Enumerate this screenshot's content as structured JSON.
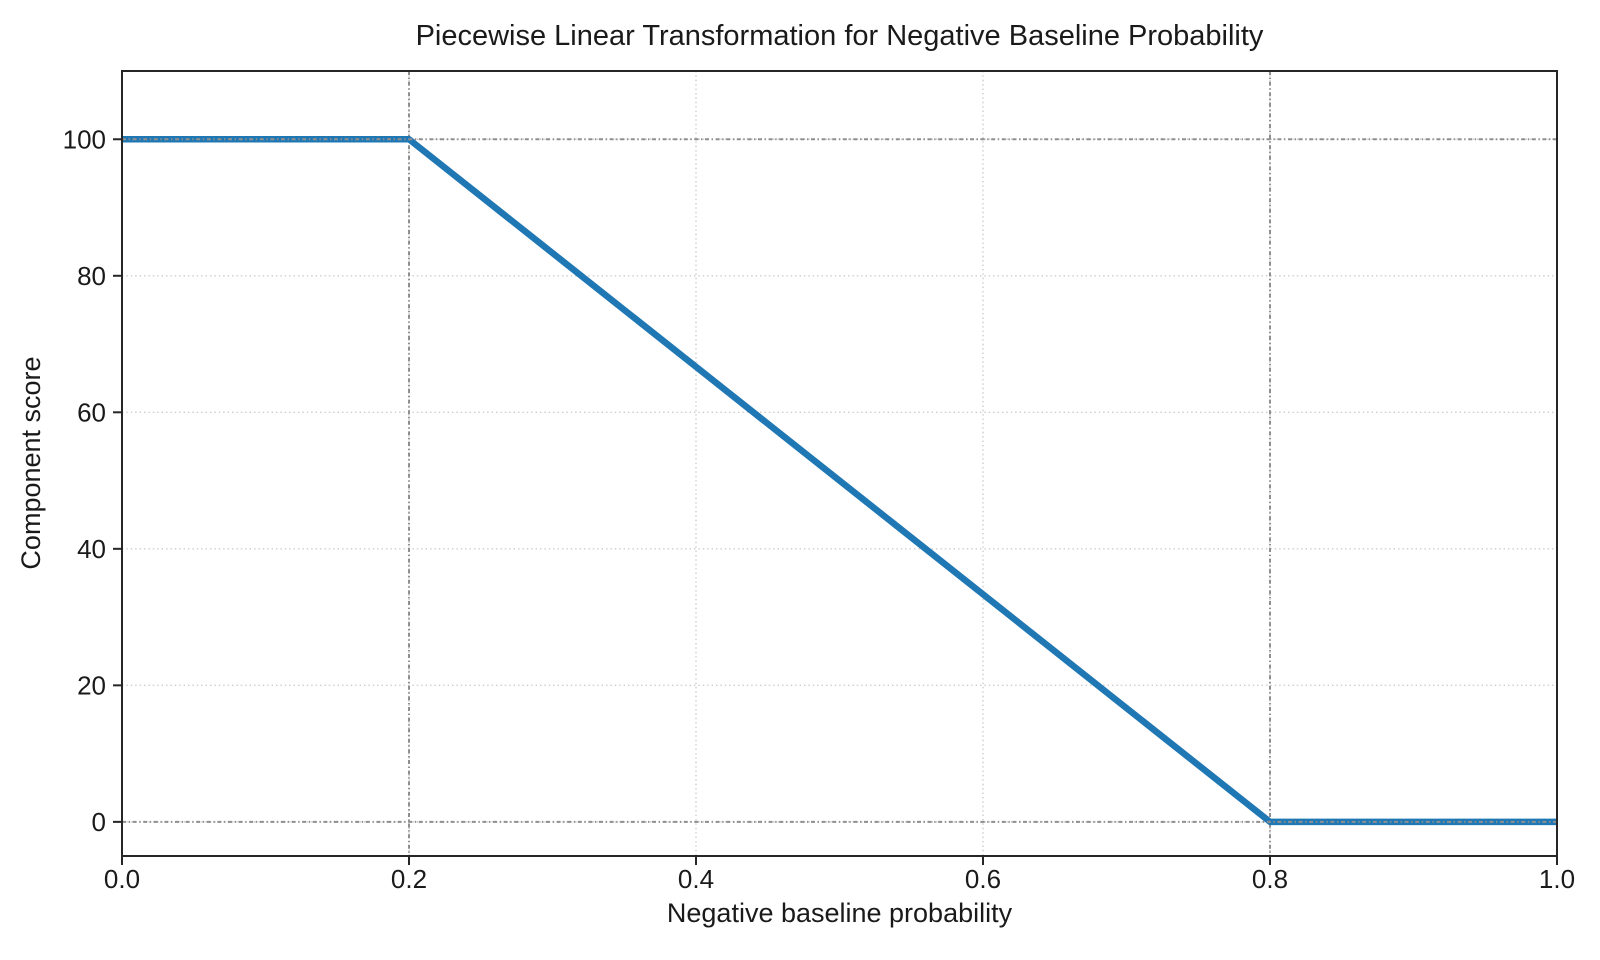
{
  "chart_data": {
    "type": "line",
    "title": "Piecewise Linear Transformation for Negative Baseline Probability",
    "xlabel": "Negative baseline probability",
    "ylabel": "Component score",
    "xlim": [
      0,
      1
    ],
    "ylim": [
      -5,
      110
    ],
    "xticks": {
      "values": [
        0,
        0.2,
        0.4,
        0.6,
        0.8,
        1.0
      ],
      "labels": [
        "0.0",
        "0.2",
        "0.4",
        "0.6",
        "0.8",
        "1.0"
      ]
    },
    "yticks": {
      "values": [
        0,
        20,
        40,
        60,
        80,
        100
      ],
      "labels": [
        "0",
        "20",
        "40",
        "60",
        "80",
        "100"
      ]
    },
    "series": [
      {
        "name": "component_score",
        "x": [
          0,
          0.2,
          0.8,
          1.0
        ],
        "y": [
          100,
          100,
          0,
          0
        ],
        "color": "#1f77b4",
        "linewidth": 6.5
      }
    ],
    "reference_lines": {
      "x": [
        0.2,
        0.8
      ],
      "y": [
        0,
        100
      ],
      "color": "#8f8f8f",
      "style": "dashdot"
    },
    "grid": {
      "show": true,
      "color": "#cbcbcb",
      "style": "dotted"
    },
    "legend": "none",
    "background": "#ffffff",
    "spine_color": "#262626",
    "text_color": "#1a1a1a"
  }
}
